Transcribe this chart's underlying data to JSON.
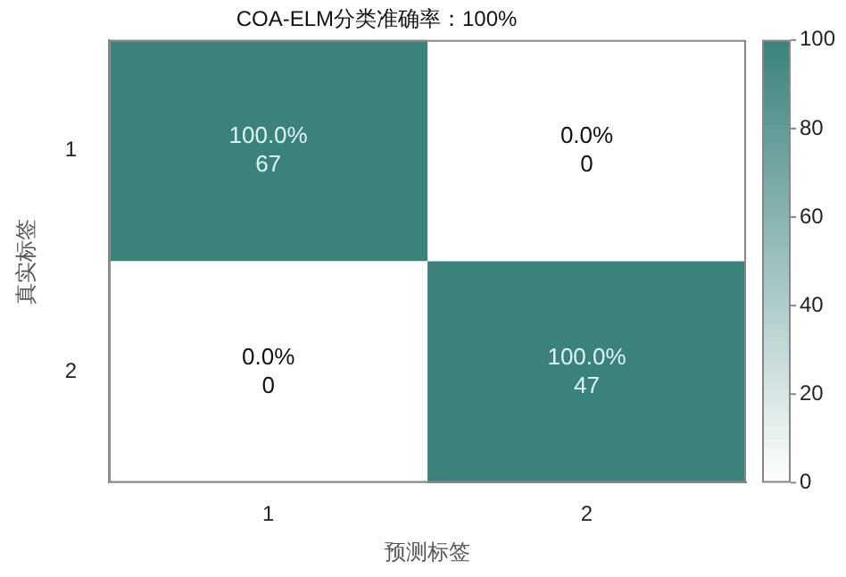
{
  "chart_data": {
    "type": "heatmap",
    "title": "COA-ELM分类准确率：100%",
    "xlabel": "预测标签",
    "ylabel": "真实标签",
    "categories": [
      "1",
      "2"
    ],
    "y_categories": [
      "1",
      "2"
    ],
    "cells": [
      [
        100,
        0
      ],
      [
        0,
        100
      ]
    ],
    "cell_labels": [
      [
        "100.0%\n67",
        "0.0%\n0"
      ],
      [
        "0.0%\n0",
        "100.0%\n47"
      ]
    ],
    "colors": [
      "#ffffff",
      "#3b827d"
    ],
    "clim": [
      0,
      100
    ],
    "cticks": [
      0,
      20,
      40,
      60,
      80,
      100
    ]
  }
}
